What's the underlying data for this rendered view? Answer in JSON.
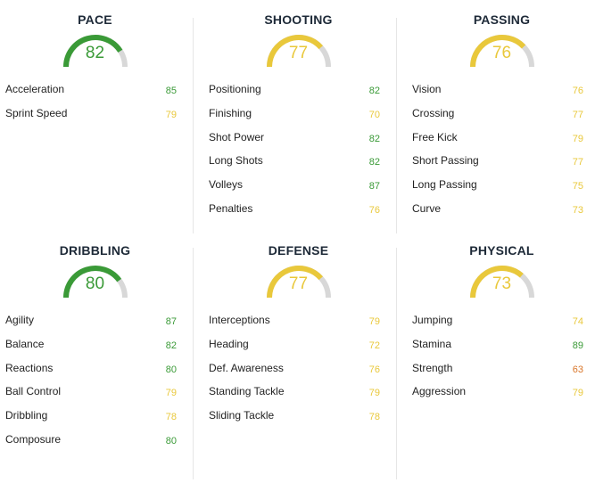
{
  "colors": {
    "green": "#3a9a37",
    "yellow": "#e9c83b",
    "orange": "#d9762a",
    "track": "#d8d8d8"
  },
  "categories": [
    {
      "name": "PACE",
      "value": "82",
      "fill": 0.82,
      "stats": [
        {
          "label": "Acceleration",
          "value": "85"
        },
        {
          "label": "Sprint Speed",
          "value": "79"
        }
      ]
    },
    {
      "name": "SHOOTING",
      "value": "77",
      "fill": 0.77,
      "stats": [
        {
          "label": "Positioning",
          "value": "82"
        },
        {
          "label": "Finishing",
          "value": "70"
        },
        {
          "label": "Shot Power",
          "value": "82"
        },
        {
          "label": "Long Shots",
          "value": "82"
        },
        {
          "label": "Volleys",
          "value": "87"
        },
        {
          "label": "Penalties",
          "value": "76"
        }
      ]
    },
    {
      "name": "PASSING",
      "value": "76",
      "fill": 0.76,
      "stats": [
        {
          "label": "Vision",
          "value": "76"
        },
        {
          "label": "Crossing",
          "value": "77"
        },
        {
          "label": "Free Kick",
          "value": "79"
        },
        {
          "label": "Short Passing",
          "value": "77"
        },
        {
          "label": "Long Passing",
          "value": "75"
        },
        {
          "label": "Curve",
          "value": "73"
        }
      ]
    },
    {
      "name": "DRIBBLING",
      "value": "80",
      "fill": 0.8,
      "stats": [
        {
          "label": "Agility",
          "value": "87"
        },
        {
          "label": "Balance",
          "value": "82"
        },
        {
          "label": "Reactions",
          "value": "80"
        },
        {
          "label": "Ball Control",
          "value": "79"
        },
        {
          "label": "Dribbling",
          "value": "78"
        },
        {
          "label": "Composure",
          "value": "80"
        }
      ]
    },
    {
      "name": "DEFENSE",
      "value": "77",
      "fill": 0.77,
      "stats": [
        {
          "label": "Interceptions",
          "value": "79"
        },
        {
          "label": "Heading",
          "value": "72"
        },
        {
          "label": "Def. Awareness",
          "value": "76"
        },
        {
          "label": "Standing Tackle",
          "value": "79"
        },
        {
          "label": "Sliding Tackle",
          "value": "78"
        }
      ]
    },
    {
      "name": "PHYSICAL",
      "value": "73",
      "fill": 0.73,
      "stats": [
        {
          "label": "Jumping",
          "value": "74"
        },
        {
          "label": "Stamina",
          "value": "89"
        },
        {
          "label": "Strength",
          "value": "63"
        },
        {
          "label": "Aggression",
          "value": "79"
        }
      ]
    }
  ]
}
